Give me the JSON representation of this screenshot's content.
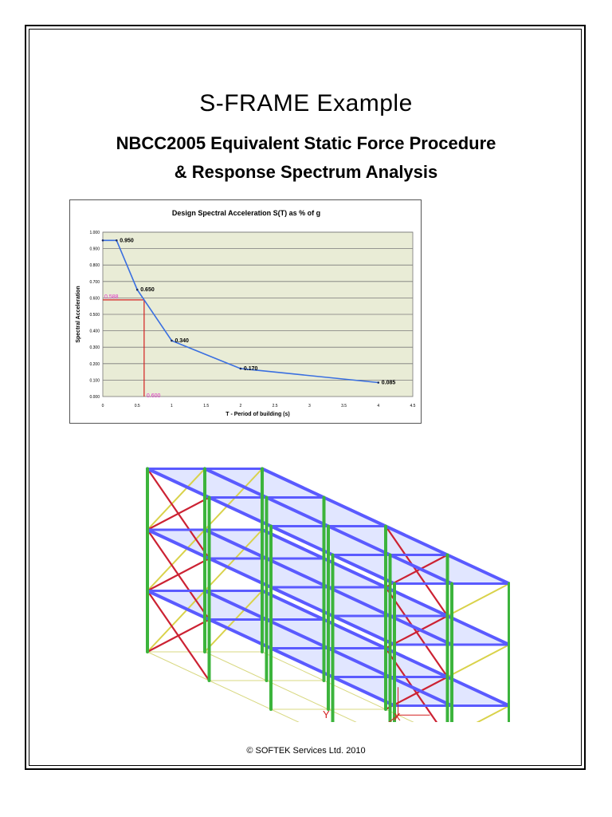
{
  "document": {
    "title": "S-FRAME Example",
    "subtitle_line1": "NBCC2005 Equivalent Static Force Procedure",
    "subtitle_line2": "& Response Spectrum Analysis",
    "copyright": "© SOFTEK Services Ltd. 2010"
  },
  "model_view": {
    "axis_labels": [
      "Y",
      "X"
    ],
    "colors": {
      "columns": "#3cb43c",
      "beams": "#5a5aff",
      "slabs": "#c8d2ff",
      "braces_red": "#cc2233",
      "braces_yellow": "#d9d24a",
      "base": "#d8d880"
    }
  },
  "chart_data": {
    "type": "line",
    "title": "Design Spectral Acceleration S(T) as % of g",
    "xlabel": "T - Period of building (s)",
    "ylabel": "Spectral Acceleration",
    "xlim": [
      0,
      4.5
    ],
    "ylim": [
      0,
      1.0
    ],
    "x_ticks": [
      "0",
      "0.5",
      "1",
      "1.5",
      "2",
      "2.5",
      "3",
      "3.5",
      "4",
      "4.5"
    ],
    "y_ticks": [
      "0.000",
      "0.100",
      "0.200",
      "0.300",
      "0.400",
      "0.500",
      "0.600",
      "0.700",
      "0.800",
      "0.900",
      "1.000"
    ],
    "grid": true,
    "series": [
      {
        "x": [
          0,
          0.2,
          0.5,
          1.0,
          2.0,
          4.0
        ],
        "y": [
          0.95,
          0.95,
          0.65,
          0.34,
          0.17,
          0.085
        ],
        "labels": [
          "",
          "0.950",
          "0.650",
          "0.340",
          "0.170",
          "0.085"
        ],
        "color": "#3a6fe0"
      }
    ],
    "reference": {
      "x": 0.6,
      "y": 0.588,
      "x_label": "0.600",
      "y_label": "0.588",
      "line_color": "#d42020",
      "label_color": "#e033c8"
    },
    "colors": {
      "plot_background": "#e9ecd6",
      "grid": "#7a7a7a"
    }
  }
}
